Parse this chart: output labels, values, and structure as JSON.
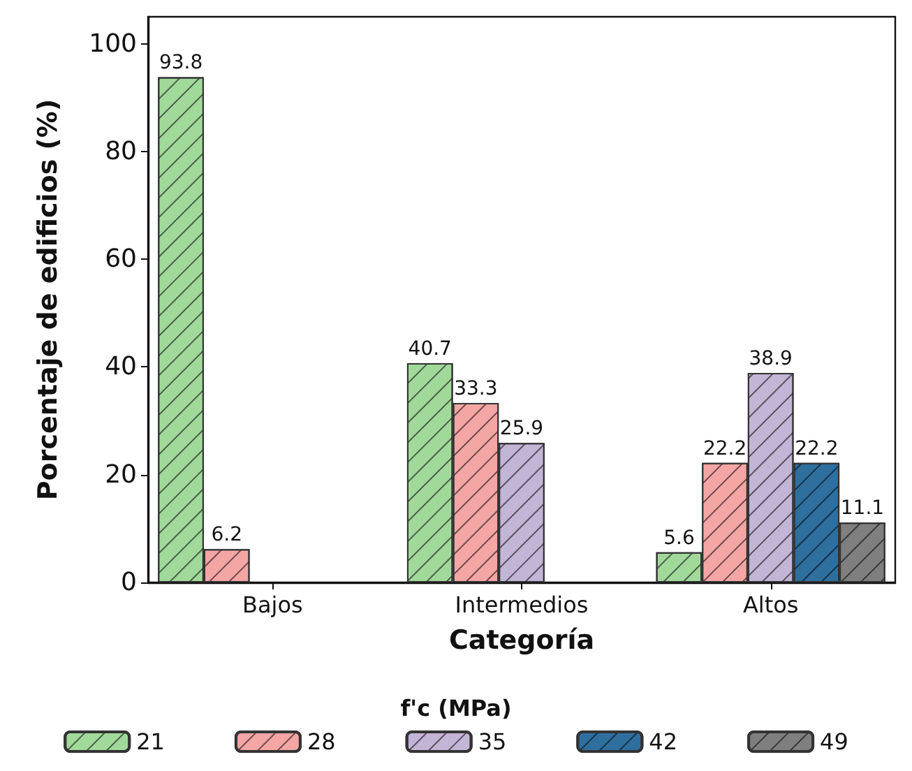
{
  "chart_data": {
    "type": "bar",
    "xlabel": "Categoría",
    "ylabel": "Porcentaje de edificios (%)",
    "legend_title": "f'c (MPa)",
    "categories": [
      "Bajos",
      "Intermedios",
      "Altos"
    ],
    "series": [
      {
        "name": "21",
        "color": "#a1d99b",
        "values": [
          93.8,
          40.7,
          5.6
        ]
      },
      {
        "name": "28",
        "color": "#f4a6a4",
        "values": [
          6.2,
          33.3,
          22.2
        ]
      },
      {
        "name": "35",
        "color": "#c2b5d6",
        "values": [
          null,
          25.9,
          38.9
        ]
      },
      {
        "name": "42",
        "color": "#2e6f9e",
        "values": [
          null,
          null,
          22.2
        ]
      },
      {
        "name": "49",
        "color": "#7f7f7f",
        "values": [
          null,
          null,
          11.1
        ]
      }
    ],
    "ylim": [
      0,
      105
    ],
    "yticks": [
      0,
      20,
      40,
      60,
      80,
      100
    ],
    "grid": false,
    "legend": "bottom",
    "data_labels": true
  }
}
